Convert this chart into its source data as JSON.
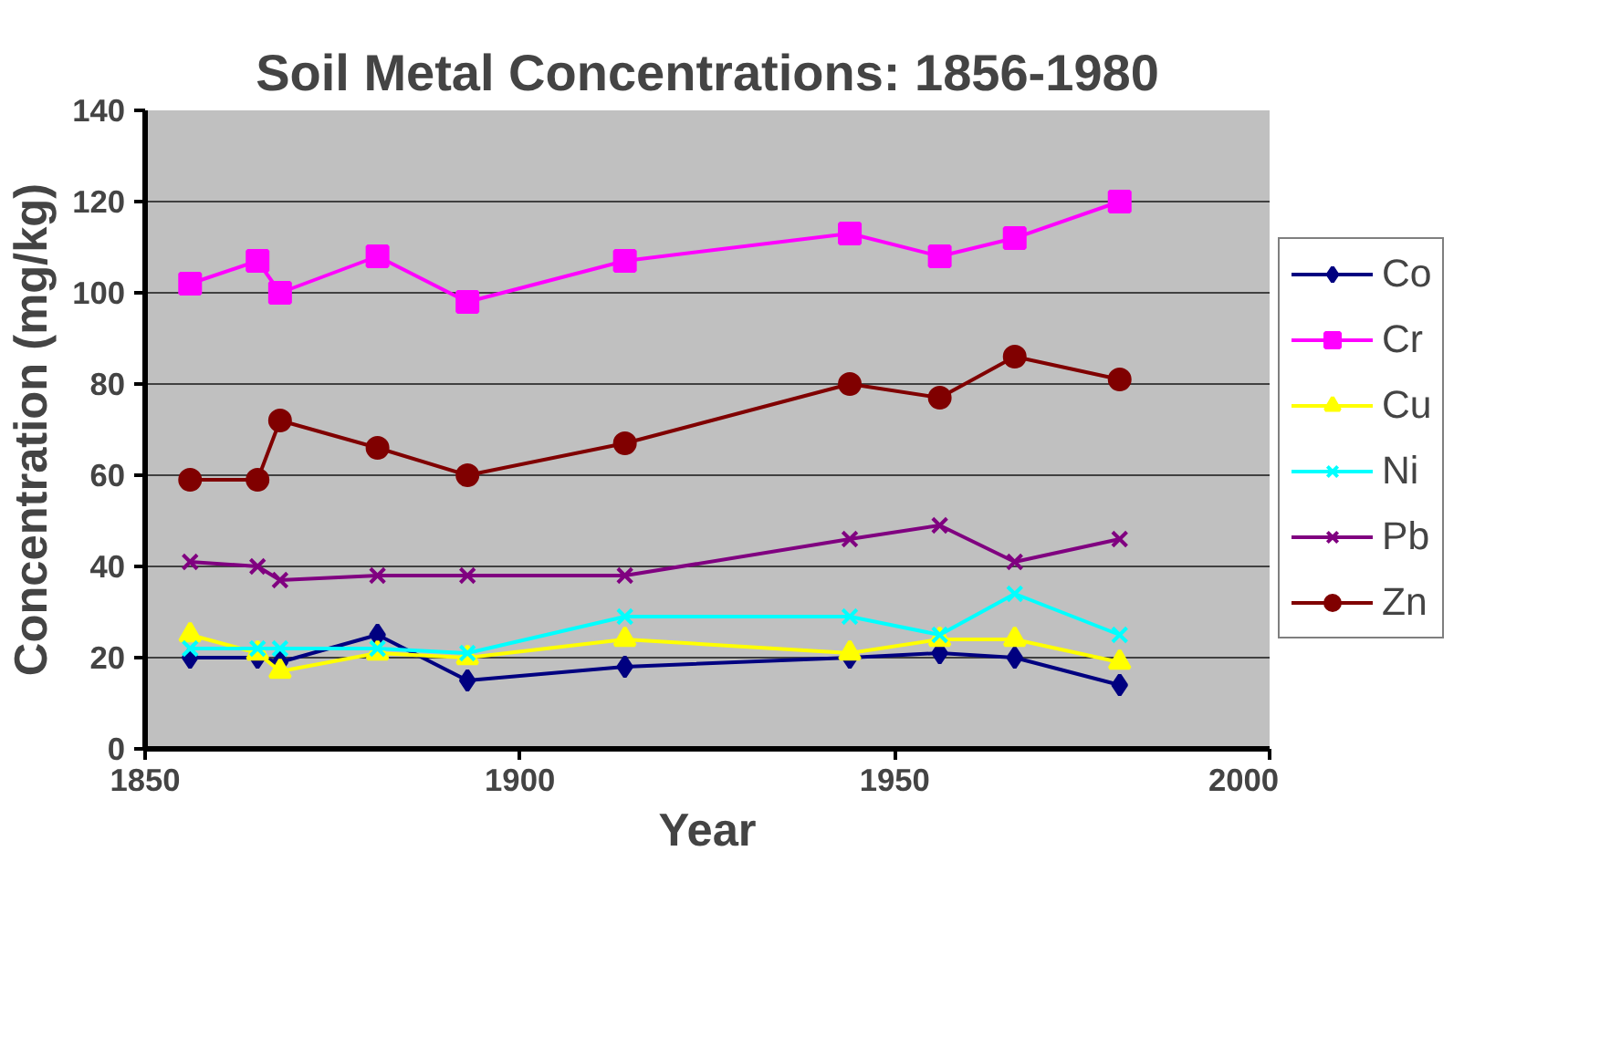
{
  "chart_data": {
    "type": "line",
    "title": "Soil Metal Concentrations: 1856-1980",
    "xlabel": "Year",
    "ylabel": "Concentration (mg/kg)",
    "x": [
      1856,
      1865,
      1868,
      1881,
      1893,
      1914,
      1944,
      1956,
      1966,
      1980
    ],
    "xlim": [
      1850,
      2000
    ],
    "xticks": [
      1850,
      1900,
      1950,
      2000
    ],
    "ylim": [
      0,
      140
    ],
    "yticks": [
      0,
      20,
      40,
      60,
      80,
      100,
      120,
      140
    ],
    "grid": "y",
    "legend": "right",
    "series": [
      {
        "name": "Co",
        "color": "#000080",
        "marker": "diamond",
        "values": [
          20,
          20,
          19,
          25,
          15,
          18,
          20,
          21,
          20,
          14
        ]
      },
      {
        "name": "Cr",
        "color": "#ff00ff",
        "marker": "square",
        "values": [
          102,
          107,
          100,
          108,
          98,
          107,
          113,
          108,
          112,
          120
        ]
      },
      {
        "name": "Cu",
        "color": "#ffff00",
        "marker": "triangle",
        "values": [
          25,
          21,
          17,
          21,
          20,
          24,
          21,
          24,
          24,
          19
        ]
      },
      {
        "name": "Ni",
        "color": "#00ffff",
        "marker": "cross",
        "values": [
          22,
          22,
          22,
          22,
          21,
          29,
          29,
          25,
          34,
          25
        ]
      },
      {
        "name": "Pb",
        "color": "#800080",
        "marker": "cross",
        "values": [
          41,
          40,
          37,
          38,
          38,
          38,
          46,
          49,
          41,
          46
        ]
      },
      {
        "name": "Zn",
        "color": "#800000",
        "marker": "circle",
        "values": [
          59,
          59,
          72,
          66,
          60,
          67,
          80,
          77,
          86,
          81
        ]
      }
    ]
  }
}
